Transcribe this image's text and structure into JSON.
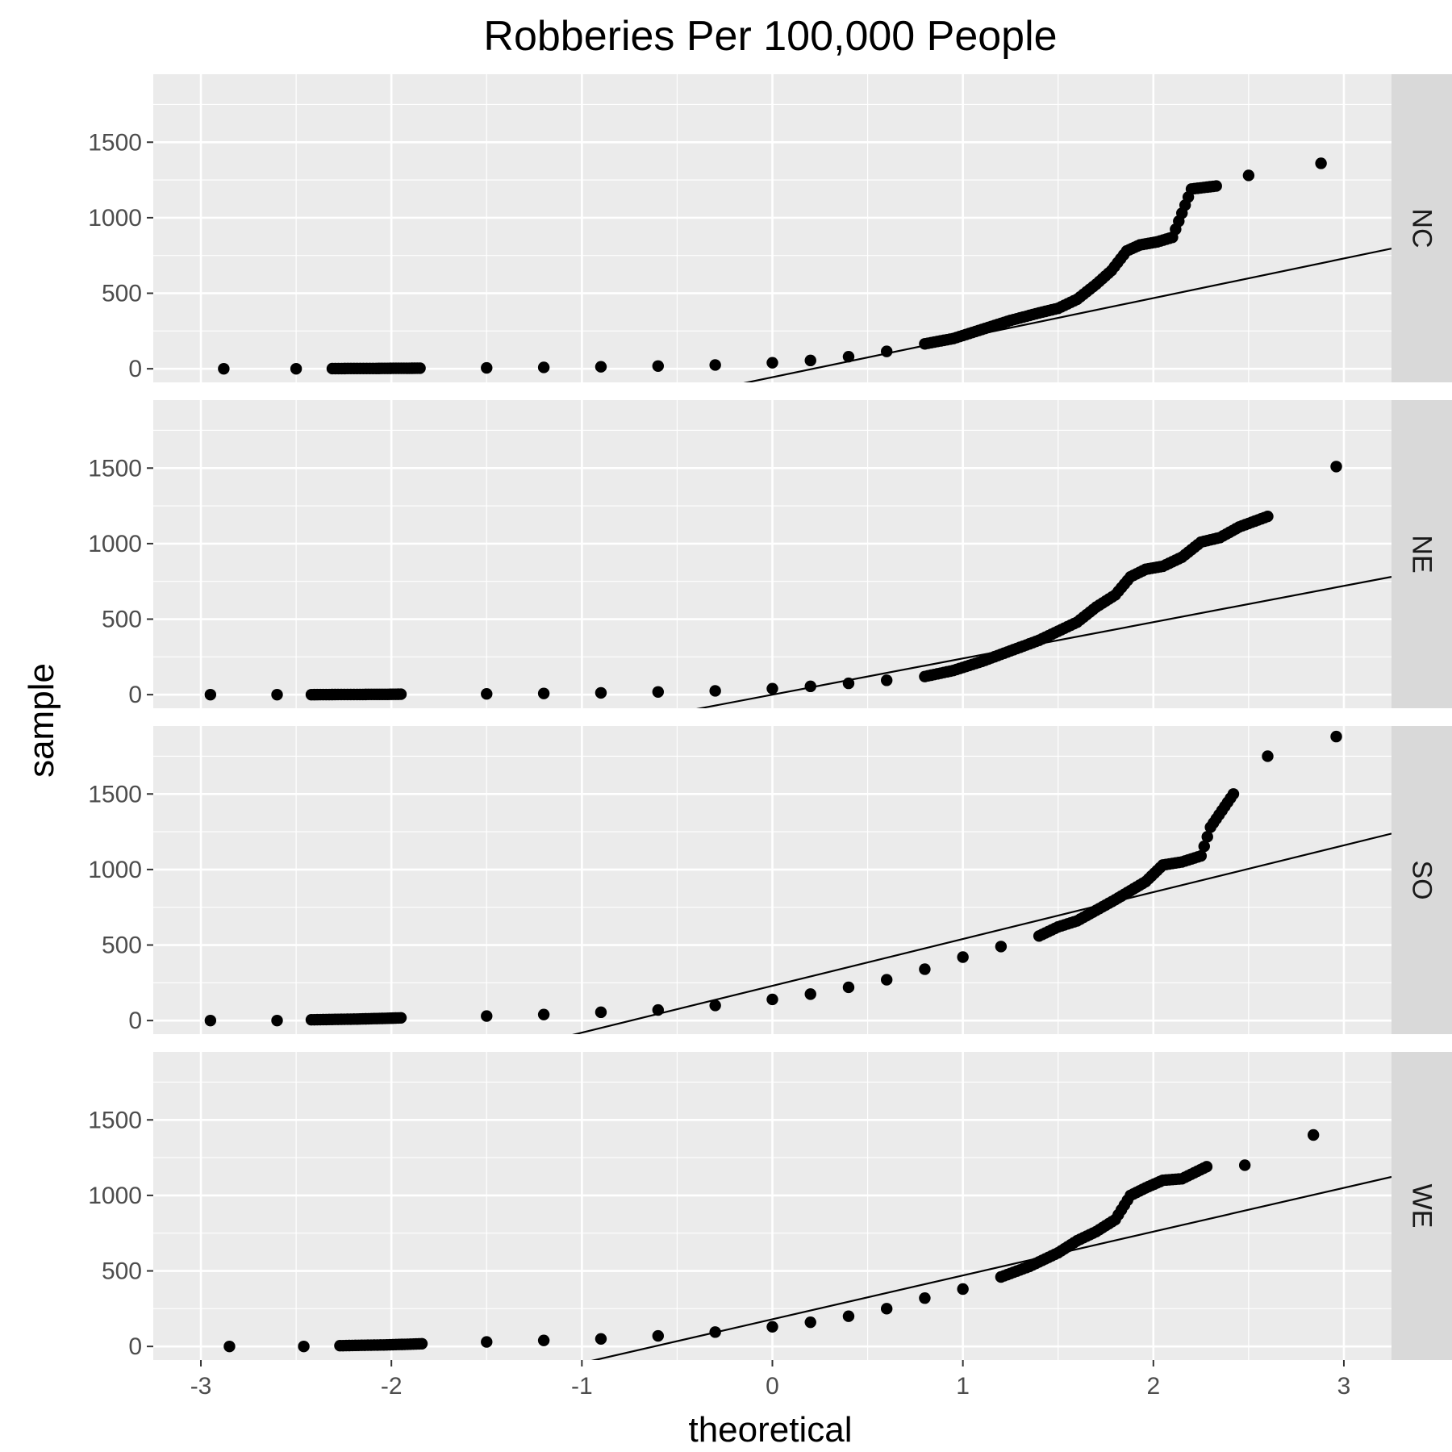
{
  "chart_data": {
    "type": "scatter",
    "subtype": "qq-plot-faceted",
    "title": "Robberies Per 100,000 People",
    "xlabel": "theoretical",
    "ylabel": "sample",
    "xlim": [
      -3.25,
      3.25
    ],
    "ylim": [
      -90,
      1950
    ],
    "x_ticks": [
      -3,
      -2,
      -1,
      0,
      1,
      2,
      3
    ],
    "x_tick_labels": [
      "-3",
      "-2",
      "-1",
      "0",
      "1",
      "2",
      "3"
    ],
    "y_ticks": [
      0,
      500,
      1000,
      1500
    ],
    "y_tick_labels": [
      "0",
      "500",
      "1000",
      "1500"
    ],
    "grid": true,
    "panel_background": "#EBEBEB",
    "strip_background": "#D9D9D9",
    "point_color": "#000000",
    "line_color": "#000000",
    "facets": [
      {
        "label": "NC",
        "ref_line": {
          "slope": 262,
          "intercept": -56
        },
        "quantiles": [
          [
            -2.88,
            0
          ],
          [
            -2.5,
            0
          ],
          [
            -2.31,
            1
          ],
          [
            -2.18,
            2
          ],
          [
            -2.08,
            2
          ],
          [
            -1.99,
            3
          ],
          [
            -1.92,
            3
          ],
          [
            -1.85,
            4
          ],
          [
            -1.5,
            6
          ],
          [
            -1.2,
            9
          ],
          [
            -0.9,
            13
          ],
          [
            -0.6,
            18
          ],
          [
            -0.3,
            25
          ],
          [
            0.0,
            40
          ],
          [
            0.2,
            55
          ],
          [
            0.4,
            80
          ],
          [
            0.6,
            115
          ],
          [
            0.8,
            165
          ],
          [
            0.95,
            200
          ],
          [
            1.1,
            260
          ],
          [
            1.25,
            320
          ],
          [
            1.4,
            370
          ],
          [
            1.5,
            400
          ],
          [
            1.6,
            460
          ],
          [
            1.7,
            560
          ],
          [
            1.78,
            650
          ],
          [
            1.86,
            780
          ],
          [
            1.93,
            820
          ],
          [
            2.02,
            840
          ],
          [
            2.1,
            870
          ],
          [
            2.2,
            1190
          ],
          [
            2.33,
            1210
          ],
          [
            2.5,
            1280
          ],
          [
            2.88,
            1360
          ]
        ]
      },
      {
        "label": "NE",
        "ref_line": {
          "slope": 240,
          "intercept": 0
        },
        "quantiles": [
          [
            -2.95,
            0
          ],
          [
            -2.6,
            0
          ],
          [
            -2.42,
            0
          ],
          [
            -2.28,
            1
          ],
          [
            -2.18,
            1
          ],
          [
            -2.09,
            2
          ],
          [
            -2.02,
            2
          ],
          [
            -1.95,
            3
          ],
          [
            -1.5,
            5
          ],
          [
            -1.2,
            8
          ],
          [
            -0.9,
            12
          ],
          [
            -0.6,
            18
          ],
          [
            -0.3,
            25
          ],
          [
            0.0,
            40
          ],
          [
            0.2,
            55
          ],
          [
            0.4,
            75
          ],
          [
            0.6,
            95
          ],
          [
            0.8,
            120
          ],
          [
            0.95,
            160
          ],
          [
            1.1,
            220
          ],
          [
            1.25,
            290
          ],
          [
            1.4,
            360
          ],
          [
            1.5,
            420
          ],
          [
            1.6,
            480
          ],
          [
            1.7,
            580
          ],
          [
            1.8,
            660
          ],
          [
            1.88,
            780
          ],
          [
            1.96,
            830
          ],
          [
            2.05,
            850
          ],
          [
            2.15,
            910
          ],
          [
            2.25,
            1010
          ],
          [
            2.35,
            1040
          ],
          [
            2.45,
            1110
          ],
          [
            2.6,
            1180
          ],
          [
            2.96,
            1510
          ]
        ]
      },
      {
        "label": "SO",
        "ref_line": {
          "slope": 310,
          "intercept": 230
        },
        "quantiles": [
          [
            -2.95,
            0
          ],
          [
            -2.6,
            0
          ],
          [
            -2.42,
            5
          ],
          [
            -2.28,
            8
          ],
          [
            -2.18,
            10
          ],
          [
            -2.09,
            13
          ],
          [
            -2.02,
            15
          ],
          [
            -1.95,
            18
          ],
          [
            -1.5,
            30
          ],
          [
            -1.2,
            40
          ],
          [
            -0.9,
            55
          ],
          [
            -0.6,
            70
          ],
          [
            -0.3,
            100
          ],
          [
            0.0,
            140
          ],
          [
            0.2,
            175
          ],
          [
            0.4,
            220
          ],
          [
            0.6,
            270
          ],
          [
            0.8,
            340
          ],
          [
            1.0,
            420
          ],
          [
            1.2,
            490
          ],
          [
            1.4,
            560
          ],
          [
            1.5,
            620
          ],
          [
            1.6,
            660
          ],
          [
            1.7,
            730
          ],
          [
            1.8,
            800
          ],
          [
            1.88,
            860
          ],
          [
            1.96,
            920
          ],
          [
            2.05,
            1030
          ],
          [
            2.15,
            1050
          ],
          [
            2.25,
            1090
          ],
          [
            2.3,
            1280
          ],
          [
            2.42,
            1500
          ],
          [
            2.6,
            1750
          ],
          [
            2.96,
            1880
          ]
        ]
      },
      {
        "label": "WE",
        "ref_line": {
          "slope": 290,
          "intercept": 180
        },
        "quantiles": [
          [
            -2.85,
            0
          ],
          [
            -2.46,
            0
          ],
          [
            -2.27,
            5
          ],
          [
            -2.14,
            8
          ],
          [
            -2.04,
            10
          ],
          [
            -1.96,
            13
          ],
          [
            -1.9,
            15
          ],
          [
            -1.84,
            18
          ],
          [
            -1.5,
            30
          ],
          [
            -1.2,
            40
          ],
          [
            -0.9,
            50
          ],
          [
            -0.6,
            70
          ],
          [
            -0.3,
            95
          ],
          [
            0.0,
            130
          ],
          [
            0.2,
            160
          ],
          [
            0.4,
            200
          ],
          [
            0.6,
            250
          ],
          [
            0.8,
            320
          ],
          [
            1.0,
            380
          ],
          [
            1.2,
            460
          ],
          [
            1.35,
            530
          ],
          [
            1.5,
            620
          ],
          [
            1.6,
            700
          ],
          [
            1.7,
            760
          ],
          [
            1.8,
            840
          ],
          [
            1.88,
            1000
          ],
          [
            1.96,
            1050
          ],
          [
            2.05,
            1100
          ],
          [
            2.15,
            1110
          ],
          [
            2.28,
            1190
          ],
          [
            2.48,
            1200
          ],
          [
            2.84,
            1400
          ]
        ]
      }
    ]
  }
}
